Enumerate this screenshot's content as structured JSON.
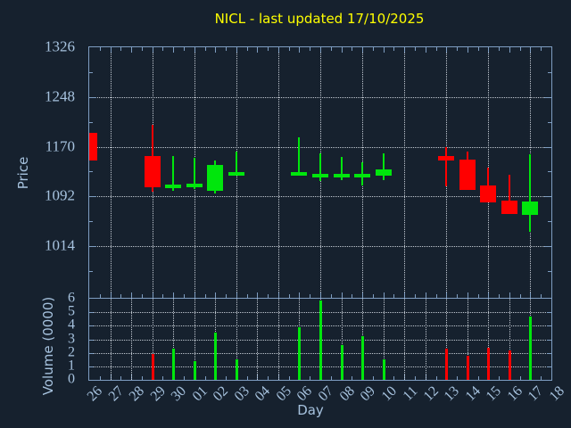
{
  "title": "NICL - last updated 17/10/2025",
  "colors": {
    "background": "#16212e",
    "frame": "#7e9dc1",
    "grid": "#c3cad3",
    "label": "#a6c2de",
    "title": "#ffff00",
    "up": "#00e60c",
    "down": "#ff0000"
  },
  "chart_data": [
    {
      "type": "candlestick",
      "title": "NICL - last updated 17/10/2025",
      "xlabel": "Day",
      "ylabel": "Price",
      "x_categories": [
        "26",
        "27",
        "28",
        "29",
        "30",
        "01",
        "02",
        "03",
        "04",
        "05",
        "06",
        "07",
        "08",
        "09",
        "10",
        "11",
        "12",
        "13",
        "14",
        "15",
        "16",
        "17",
        "18"
      ],
      "ylim": [
        933,
        1326
      ],
      "yticks": [
        1014,
        1092,
        1170,
        1248,
        1326
      ],
      "grid": "on",
      "series": [
        {
          "day": "26",
          "open": 1192,
          "high": 1192,
          "low": 1149,
          "close": 1149
        },
        {
          "day": "29",
          "open": 1155,
          "high": 1204,
          "low": 1100,
          "close": 1106
        },
        {
          "day": "30",
          "open": 1108,
          "high": 1155,
          "low": 1101,
          "close": 1108
        },
        {
          "day": "01",
          "open": 1109,
          "high": 1152,
          "low": 1103,
          "close": 1109
        },
        {
          "day": "02",
          "open": 1101,
          "high": 1148,
          "low": 1096,
          "close": 1141
        },
        {
          "day": "03",
          "open": 1128,
          "high": 1162,
          "low": 1125,
          "close": 1128
        },
        {
          "day": "06",
          "open": 1128,
          "high": 1185,
          "low": 1127,
          "close": 1128
        },
        {
          "day": "07",
          "open": 1124,
          "high": 1159,
          "low": 1116,
          "close": 1124
        },
        {
          "day": "08",
          "open": 1124,
          "high": 1154,
          "low": 1117,
          "close": 1124
        },
        {
          "day": "09",
          "open": 1124,
          "high": 1146,
          "low": 1109,
          "close": 1124
        },
        {
          "day": "10",
          "open": 1124,
          "high": 1159,
          "low": 1118,
          "close": 1135
        },
        {
          "day": "13",
          "open": 1155,
          "high": 1170,
          "low": 1108,
          "close": 1148
        },
        {
          "day": "14",
          "open": 1150,
          "high": 1163,
          "low": 1102,
          "close": 1102
        },
        {
          "day": "15",
          "open": 1109,
          "high": 1137,
          "low": 1083,
          "close": 1083
        },
        {
          "day": "16",
          "open": 1085,
          "high": 1126,
          "low": 1064,
          "close": 1064
        },
        {
          "day": "17",
          "open": 1063,
          "high": 1158,
          "low": 1037,
          "close": 1084
        }
      ]
    },
    {
      "type": "bar",
      "ylabel": "Volume (0000)",
      "ylim": [
        0,
        6
      ],
      "yticks": [
        0,
        1,
        2,
        3,
        4,
        5,
        6
      ],
      "grid": "on",
      "points": [
        {
          "day": "29",
          "value": 1.9,
          "dir": "down"
        },
        {
          "day": "30",
          "value": 2.3,
          "dir": "up"
        },
        {
          "day": "01",
          "value": 1.4,
          "dir": "up"
        },
        {
          "day": "02",
          "value": 3.5,
          "dir": "up"
        },
        {
          "day": "03",
          "value": 1.5,
          "dir": "up"
        },
        {
          "day": "06",
          "value": 3.9,
          "dir": "up"
        },
        {
          "day": "07",
          "value": 5.9,
          "dir": "up"
        },
        {
          "day": "08",
          "value": 2.6,
          "dir": "up"
        },
        {
          "day": "09",
          "value": 3.2,
          "dir": "up"
        },
        {
          "day": "10",
          "value": 1.5,
          "dir": "up"
        },
        {
          "day": "13",
          "value": 2.3,
          "dir": "down"
        },
        {
          "day": "14",
          "value": 1.8,
          "dir": "down"
        },
        {
          "day": "15",
          "value": 2.4,
          "dir": "down"
        },
        {
          "day": "16",
          "value": 2.2,
          "dir": "down"
        },
        {
          "day": "17",
          "value": 4.7,
          "dir": "up"
        }
      ]
    }
  ],
  "price_axis": {
    "label": "Price"
  },
  "volume_axis": {
    "label": "Volume (0000)"
  },
  "x_axis": {
    "label": "Day"
  }
}
